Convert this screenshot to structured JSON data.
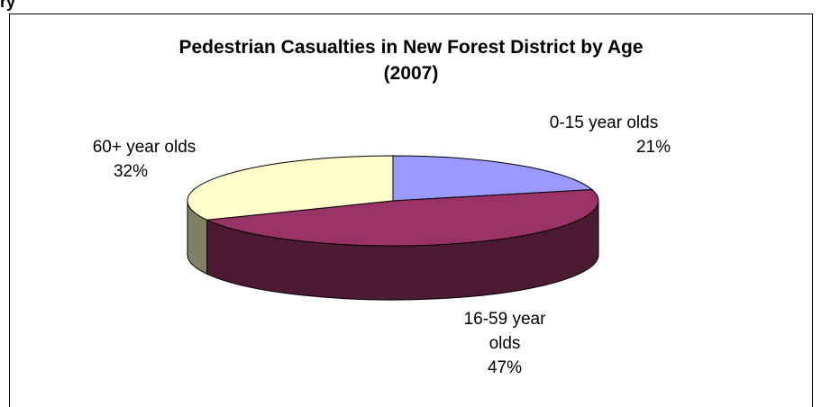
{
  "page": {
    "clipped_top_text": "ry"
  },
  "chart_data": {
    "type": "pie",
    "title_line1": "Pedestrian Casualties in New Forest District by Age",
    "title_line2": "(2007)",
    "slices": [
      {
        "name": "0-15 year olds",
        "value": 21,
        "label_line1": "0-15 year olds",
        "label_line2": "",
        "pct": "21%",
        "color": "#9999FF",
        "side": "#6b6bb3"
      },
      {
        "name": "16-59 year olds",
        "value": 47,
        "label_line1": "16-59 year",
        "label_line2": "olds",
        "pct": "47%",
        "color": "#993366",
        "side": "#4d1a33"
      },
      {
        "name": "60+ year olds",
        "value": 32,
        "label_line1": "60+ year olds",
        "label_line2": "",
        "pct": "32%",
        "color": "#FFFFCC",
        "side": "#808066"
      }
    ]
  }
}
